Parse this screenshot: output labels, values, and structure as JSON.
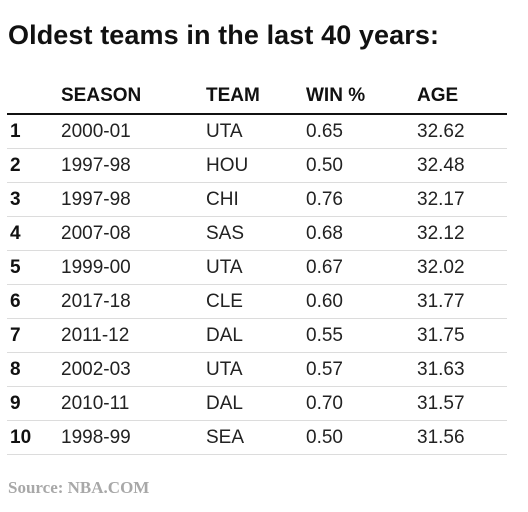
{
  "title": "Oldest teams in the last 40 years:",
  "columns": [
    "",
    "SEASON",
    "TEAM",
    "WIN %",
    "AGE"
  ],
  "rows": [
    {
      "rank": "1",
      "season": "2000-01",
      "team": "UTA",
      "win_pct": "0.65",
      "age": "32.62"
    },
    {
      "rank": "2",
      "season": "1997-98",
      "team": "HOU",
      "win_pct": "0.50",
      "age": "32.48"
    },
    {
      "rank": "3",
      "season": "1997-98",
      "team": "CHI",
      "win_pct": "0.76",
      "age": "32.17"
    },
    {
      "rank": "4",
      "season": "2007-08",
      "team": "SAS",
      "win_pct": "0.68",
      "age": "32.12"
    },
    {
      "rank": "5",
      "season": "1999-00",
      "team": "UTA",
      "win_pct": "0.67",
      "age": "32.02"
    },
    {
      "rank": "6",
      "season": "2017-18",
      "team": "CLE",
      "win_pct": "0.60",
      "age": "31.77"
    },
    {
      "rank": "7",
      "season": "2011-12",
      "team": "DAL",
      "win_pct": "0.55",
      "age": "31.75"
    },
    {
      "rank": "8",
      "season": "2002-03",
      "team": "UTA",
      "win_pct": "0.57",
      "age": "31.63"
    },
    {
      "rank": "9",
      "season": "2010-11",
      "team": "DAL",
      "win_pct": "0.70",
      "age": "31.57"
    },
    {
      "rank": "10",
      "season": "1998-99",
      "team": "SEA",
      "win_pct": "0.50",
      "age": "31.56"
    }
  ],
  "source": "Source: NBA.COM"
}
